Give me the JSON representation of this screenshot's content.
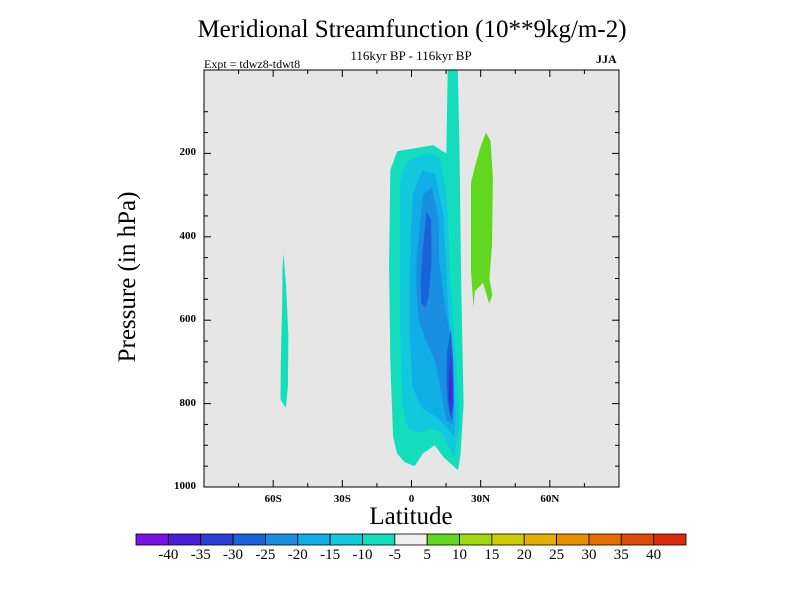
{
  "chart_data": {
    "type": "heatmap",
    "title": "Meridional Streamfunction (10**9kg/m-2)",
    "subtitle": "116kyr BP - 116kyr BP",
    "experiment": "Expt = tdwz8-tdwt8",
    "season": "JJA",
    "xlabel": "Latitude",
    "ylabel": "Pressure (in hPa)",
    "xlim": [
      -90,
      90
    ],
    "ylim": [
      1000,
      0
    ],
    "x_ticks": [
      {
        "label": "60S",
        "value": -60
      },
      {
        "label": "30S",
        "value": -30
      },
      {
        "label": "0",
        "value": 0
      },
      {
        "label": "30N",
        "value": 30
      },
      {
        "label": "60N",
        "value": 60
      }
    ],
    "y_ticks": [
      {
        "label": "200",
        "value": 200
      },
      {
        "label": "400",
        "value": 400
      },
      {
        "label": "600",
        "value": 600
      },
      {
        "label": "800",
        "value": 800
      },
      {
        "label": "1000",
        "value": 1000
      }
    ],
    "background_color": "#e6e6e6",
    "contour_levels": [
      -40,
      -35,
      -30,
      -25,
      -20,
      -15,
      -10,
      -5,
      5,
      10,
      15,
      20,
      25,
      30,
      35,
      40
    ],
    "colorbar_colors": [
      "#7a12e6",
      "#4a1fd8",
      "#2b3ed6",
      "#1a62d9",
      "#1a8ee0",
      "#10aee6",
      "#12c8dc",
      "#14ddbe",
      "#eeeeee",
      "#60d820",
      "#9ed80e",
      "#cccc00",
      "#e4b000",
      "#e89000",
      "#e66e00",
      "#e04a08",
      "#dc2a0c"
    ],
    "regions": [
      {
        "name": "sh-cell",
        "value": -7,
        "color": "#14ddbe",
        "outline": [
          [
            -55.5,
            440
          ],
          [
            -54.4,
            520
          ],
          [
            -53.4,
            640
          ],
          [
            -53.6,
            760
          ],
          [
            -54.5,
            810
          ],
          [
            -56.8,
            790
          ],
          [
            -56.7,
            700
          ],
          [
            -56.1,
            560
          ],
          [
            -55.9,
            470
          ]
        ]
      },
      {
        "name": "tropical-outer",
        "value": -7,
        "color": "#14ddbe",
        "outline": [
          [
            -9.2,
            240
          ],
          [
            -6.2,
            195
          ],
          [
            9.4,
            180
          ],
          [
            15.1,
            200
          ],
          [
            15.7,
            0
          ],
          [
            20.1,
            0
          ],
          [
            20.8,
            190
          ],
          [
            21.5,
            500
          ],
          [
            22.6,
            800
          ],
          [
            21.3,
            920
          ],
          [
            20.2,
            960
          ],
          [
            14.1,
            930
          ],
          [
            10,
            900
          ],
          [
            4.9,
            920
          ],
          [
            1.4,
            950
          ],
          [
            -3.1,
            940
          ],
          [
            -6.2,
            920
          ],
          [
            -8,
            880
          ],
          [
            -9.2,
            700
          ],
          [
            -9.7,
            470
          ]
        ]
      },
      {
        "name": "tropical-level-12",
        "value": -12,
        "color": "#12c8dc",
        "outline": [
          [
            -5.1,
            270
          ],
          [
            -2.1,
            220
          ],
          [
            5.6,
            200
          ],
          [
            12.2,
            210
          ],
          [
            15.3,
            300
          ],
          [
            16.8,
            500
          ],
          [
            19.3,
            700
          ],
          [
            20.9,
            850
          ],
          [
            18.6,
            930
          ],
          [
            13.1,
            870
          ],
          [
            8,
            860
          ],
          [
            4,
            870
          ],
          [
            -1.5,
            860
          ],
          [
            -4,
            800
          ],
          [
            -5.1,
            600
          ]
        ]
      },
      {
        "name": "tropical-level-17",
        "value": -17,
        "color": "#10aee6",
        "outline": [
          [
            0.5,
            300
          ],
          [
            4.6,
            240
          ],
          [
            10.3,
            250
          ],
          [
            13.9,
            350
          ],
          [
            15.6,
            540
          ],
          [
            17.3,
            700
          ],
          [
            19.1,
            820
          ],
          [
            18.6,
            880
          ],
          [
            14.1,
            850
          ],
          [
            10.3,
            830
          ],
          [
            4.4,
            810
          ],
          [
            0.4,
            760
          ],
          [
            -0.9,
            600
          ],
          [
            -0.4,
            400
          ]
        ]
      },
      {
        "name": "tropical-level-22",
        "value": -22,
        "color": "#1a8ee0",
        "outline": [
          [
            2.2,
            450
          ],
          [
            4.9,
            300
          ],
          [
            8.9,
            280
          ],
          [
            11.7,
            360
          ],
          [
            12,
            460
          ],
          [
            14.3,
            560
          ],
          [
            16.9,
            640
          ],
          [
            18.4,
            750
          ],
          [
            17.9,
            850
          ],
          [
            15.1,
            840
          ],
          [
            13.1,
            780
          ],
          [
            10.3,
            700
          ],
          [
            5.6,
            640
          ],
          [
            3.2,
            600
          ],
          [
            2,
            520
          ]
        ]
      },
      {
        "name": "tropical-level-27",
        "value": -27,
        "color": "#1a62d9",
        "outline": [
          [
            4.6,
            450
          ],
          [
            6.5,
            340
          ],
          [
            8.5,
            360
          ],
          [
            8.7,
            460
          ],
          [
            7.5,
            540
          ],
          [
            6.2,
            570
          ],
          [
            4.3,
            560
          ],
          [
            4,
            510
          ]
        ]
      },
      {
        "name": "lower-core-27",
        "value": -27,
        "color": "#1a62d9",
        "outline": [
          [
            15.3,
            680
          ],
          [
            17.1,
            620
          ],
          [
            18.1,
            700
          ],
          [
            18.4,
            800
          ],
          [
            17.5,
            840
          ],
          [
            15.7,
            800
          ],
          [
            15.2,
            750
          ]
        ]
      },
      {
        "name": "lower-core-32",
        "value": -32,
        "color": "#2b3ed6",
        "outline": [
          [
            16,
            740
          ],
          [
            17,
            670
          ],
          [
            17.9,
            740
          ],
          [
            17.8,
            810
          ],
          [
            16.8,
            830
          ],
          [
            16,
            790
          ]
        ]
      },
      {
        "name": "lower-core-37",
        "value": -37,
        "color": "#4a1fd8",
        "outline": [
          [
            16.5,
            760
          ],
          [
            17,
            730
          ],
          [
            17.4,
            770
          ],
          [
            17.2,
            800
          ],
          [
            16.6,
            790
          ]
        ]
      },
      {
        "name": "nh-positive-cell",
        "value": 7,
        "color": "#60d820",
        "outline": [
          [
            25.8,
            270
          ],
          [
            27.6,
            230
          ],
          [
            30.2,
            180
          ],
          [
            32.3,
            150
          ],
          [
            34.3,
            170
          ],
          [
            35.3,
            260
          ],
          [
            34.9,
            420
          ],
          [
            33.8,
            500
          ],
          [
            35.1,
            540
          ],
          [
            33.7,
            560
          ],
          [
            31,
            510
          ],
          [
            27.5,
            530
          ],
          [
            26.9,
            570
          ],
          [
            25.8,
            480
          ]
        ]
      }
    ]
  }
}
